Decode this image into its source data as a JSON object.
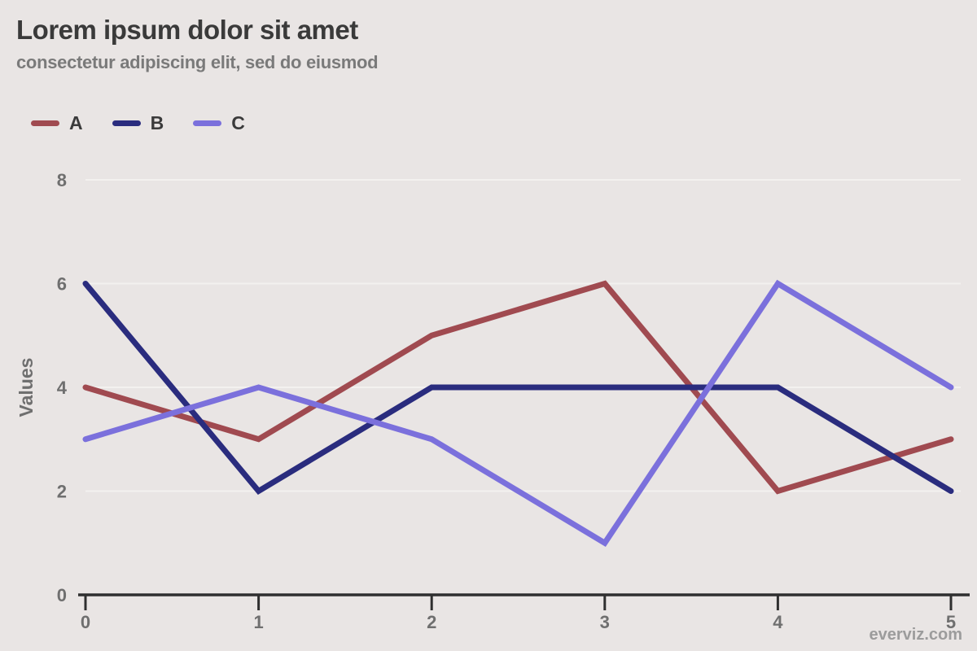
{
  "header": {
    "title": "Lorem ipsum dolor sit amet",
    "subtitle": "consectetur adipiscing elit, sed do eiusmod"
  },
  "watermark": "everviz.com",
  "colors": {
    "background": "#E9E5E4",
    "grid": "#F3F1EF",
    "axis": "#2F2F2F",
    "tick_text": "#6F6F6F",
    "title": "#3A3A3A",
    "subtitle": "#7A7A7A",
    "legend_text": "#3B3B3B",
    "watermark": "#9C9C9C"
  },
  "chart_data": {
    "type": "line",
    "x": [
      0,
      1,
      2,
      3,
      4,
      5
    ],
    "series": [
      {
        "name": "A",
        "color": "#A04A50",
        "values": [
          4,
          3,
          5,
          6,
          2,
          3
        ]
      },
      {
        "name": "B",
        "color": "#2A2C7E",
        "values": [
          6,
          2,
          4,
          4,
          4,
          2
        ]
      },
      {
        "name": "C",
        "color": "#7B70DC",
        "values": [
          3,
          4,
          3,
          1,
          6,
          4
        ]
      }
    ],
    "title": "Lorem ipsum dolor sit amet",
    "subtitle": "consectetur adipiscing elit, sed do eiusmod",
    "xlabel": "",
    "ylabel": "Values",
    "ylim": [
      0,
      8
    ],
    "yticks": [
      0,
      2,
      4,
      6,
      8
    ],
    "xticks": [
      0,
      1,
      2,
      3,
      4,
      5
    ],
    "grid": "horizontal-faint",
    "legend_position": "top-left",
    "credits": "everviz.com"
  }
}
